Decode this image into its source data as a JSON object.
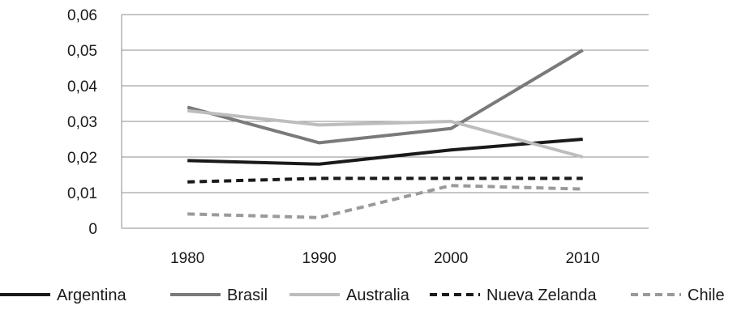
{
  "chart_data": {
    "type": "line",
    "title": "",
    "xlabel": "",
    "ylabel": "",
    "categories": [
      "1980",
      "1990",
      "2000",
      "2010"
    ],
    "y_ticks": [
      "0",
      "0,01",
      "0,02",
      "0,03",
      "0,04",
      "0,05",
      "0,06"
    ],
    "ylim": [
      0,
      0.06
    ],
    "grid": "horizontal",
    "legend_position": "bottom",
    "series": [
      {
        "name": "Argentina",
        "values": [
          0.019,
          0.018,
          0.022,
          0.025
        ],
        "color": "#1a1a1a",
        "dashed": false
      },
      {
        "name": "Brasil",
        "values": [
          0.034,
          0.024,
          0.028,
          0.05
        ],
        "color": "#7a7a7a",
        "dashed": false
      },
      {
        "name": "Australia",
        "values": [
          0.033,
          0.029,
          0.03,
          0.02
        ],
        "color": "#bdbdbd",
        "dashed": false
      },
      {
        "name": "Nueva Zelanda",
        "values": [
          0.013,
          0.014,
          0.014,
          0.014
        ],
        "color": "#1a1a1a",
        "dashed": true
      },
      {
        "name": "Chile",
        "values": [
          0.004,
          0.003,
          0.012,
          0.011
        ],
        "color": "#9a9a9a",
        "dashed": true
      }
    ]
  }
}
